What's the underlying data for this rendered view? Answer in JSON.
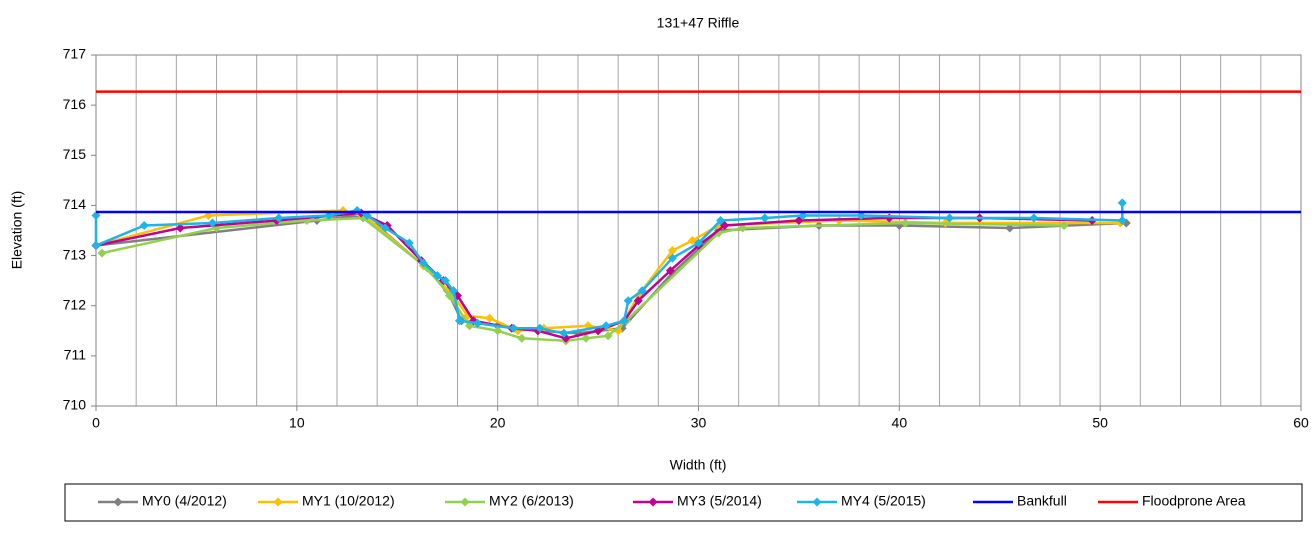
{
  "chart_data": {
    "type": "line",
    "title": "131+47 Riffle",
    "xlabel": "Width (ft)",
    "ylabel": "Elevation (ft)",
    "xlim": [
      0,
      60
    ],
    "xticks": [
      0,
      10,
      20,
      30,
      40,
      50,
      60
    ],
    "xgrid": [
      2,
      4,
      6,
      8,
      10,
      12,
      14,
      16,
      18,
      20,
      22,
      24,
      26,
      28,
      30,
      32,
      34,
      36,
      38,
      40,
      42,
      44,
      46,
      48,
      50,
      52,
      54,
      56,
      58
    ],
    "ylim": [
      710,
      717
    ],
    "yticks": [
      710,
      711,
      712,
      713,
      714,
      715,
      716,
      717
    ],
    "legend": "bottom",
    "series": [
      {
        "name": "MY0 (4/2012)",
        "color": "#808080",
        "marker": true,
        "x": [
          0,
          11,
          13,
          14,
          16.3,
          17.5,
          18.2,
          20,
          22,
          24,
          26.2,
          28.7,
          31,
          36,
          40,
          45.5,
          51.3
        ],
        "values": [
          713.2,
          713.7,
          713.8,
          713.6,
          712.8,
          712.3,
          711.7,
          711.6,
          711.5,
          711.45,
          711.55,
          712.65,
          713.5,
          713.6,
          713.6,
          713.55,
          713.65
        ]
      },
      {
        "name": "MY1 (10/2012)",
        "color": "#ffc000",
        "marker": true,
        "x": [
          0,
          5.6,
          12.3,
          13.5,
          16.3,
          17.8,
          18.5,
          19.6,
          21,
          22.3,
          24.5,
          26,
          27,
          28.7,
          29.7,
          31,
          37,
          42.3,
          51
        ],
        "values": [
          713.2,
          713.8,
          713.9,
          713.75,
          712.8,
          712.2,
          711.8,
          711.75,
          711.5,
          711.55,
          711.6,
          711.5,
          712.2,
          713.1,
          713.3,
          713.6,
          713.7,
          713.65,
          713.65
        ]
      },
      {
        "name": "MY2 (6/2013)",
        "color": "#92d050",
        "marker": true,
        "x": [
          0.3,
          6,
          10.5,
          13.3,
          16.5,
          17.6,
          18.6,
          20,
          21.2,
          23.4,
          24.4,
          25.5,
          26.4,
          31,
          32.2,
          40.3,
          48.2
        ],
        "values": [
          713.05,
          713.55,
          713.7,
          713.75,
          712.75,
          712.2,
          711.6,
          711.5,
          711.35,
          711.3,
          711.35,
          711.4,
          711.7,
          713.45,
          713.55,
          713.65,
          713.6
        ]
      },
      {
        "name": "MY3 (5/2014)",
        "color": "#c0008f",
        "marker": true,
        "x": [
          0,
          4.2,
          9,
          13.2,
          14.5,
          16.2,
          17.3,
          18,
          18.8,
          20.7,
          22,
          23.4,
          25,
          26.3,
          27,
          28.6,
          30,
          31.3,
          35,
          39.5,
          44,
          49.6
        ],
        "values": [
          713.2,
          713.55,
          713.7,
          713.85,
          713.6,
          712.9,
          712.5,
          712.2,
          711.7,
          711.55,
          711.5,
          711.35,
          711.5,
          711.7,
          712.1,
          712.7,
          713.2,
          713.6,
          713.7,
          713.75,
          713.75,
          713.7
        ]
      },
      {
        "name": "MY4 (5/2015)",
        "color": "#1fb4e8",
        "marker": true,
        "x": [
          0,
          0,
          2.4,
          5.8,
          9.1,
          11.6,
          13,
          13.5,
          14.4,
          15.6,
          16.3,
          17,
          17.4,
          17.8,
          18.1,
          19,
          20.8,
          22.1,
          23.3,
          25.4,
          26.3,
          26.5,
          27.2,
          28.7,
          30,
          31.1,
          33.3,
          35.2,
          38.1,
          42.5,
          46.7,
          51.1,
          51.1
        ],
        "values": [
          713.8,
          713.2,
          713.6,
          713.65,
          713.75,
          713.8,
          713.9,
          713.8,
          713.55,
          713.25,
          712.85,
          712.6,
          712.5,
          712.3,
          711.7,
          711.65,
          711.55,
          711.55,
          711.45,
          711.6,
          711.7,
          712.1,
          712.3,
          712.95,
          713.25,
          713.7,
          713.75,
          713.8,
          713.8,
          713.75,
          713.75,
          713.7,
          714.05
        ]
      },
      {
        "name": "Bankfull",
        "color": "#0000ff",
        "marker": false,
        "x": [
          0,
          60
        ],
        "values": [
          713.87,
          713.87
        ]
      },
      {
        "name": "Floodprone Area",
        "color": "#ff0000",
        "marker": false,
        "x": [
          0,
          60
        ],
        "values": [
          716.27,
          716.27
        ]
      }
    ]
  }
}
